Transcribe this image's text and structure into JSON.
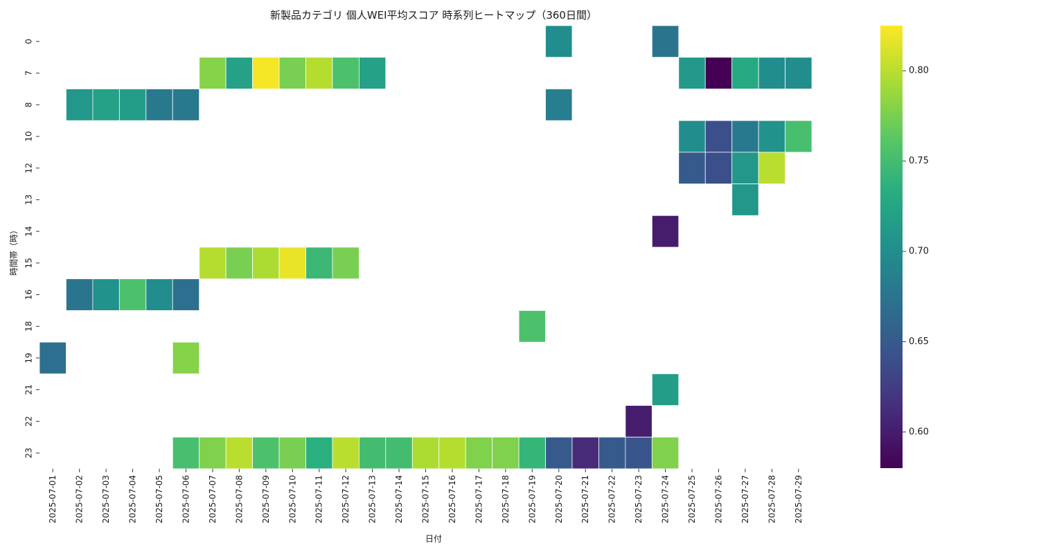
{
  "chart_data": {
    "type": "heatmap",
    "title": "新製品カテゴリ 個人WEI平均スコア 時系列ヒートマップ（360日間）",
    "xlabel": "日付",
    "ylabel": "時間帯（時）",
    "x": [
      "2025-07-01",
      "2025-07-02",
      "2025-07-03",
      "2025-07-04",
      "2025-07-05",
      "2025-07-06",
      "2025-07-07",
      "2025-07-08",
      "2025-07-09",
      "2025-07-10",
      "2025-07-11",
      "2025-07-12",
      "2025-07-13",
      "2025-07-14",
      "2025-07-15",
      "2025-07-16",
      "2025-07-17",
      "2025-07-18",
      "2025-07-19",
      "2025-07-20",
      "2025-07-21",
      "2025-07-22",
      "2025-07-23",
      "2025-07-24",
      "2025-07-25",
      "2025-07-26",
      "2025-07-27",
      "2025-07-28",
      "2025-07-29"
    ],
    "y": [
      "0",
      "7",
      "8",
      "10",
      "12",
      "13",
      "14",
      "15",
      "16",
      "18",
      "19",
      "21",
      "22",
      "23"
    ],
    "colormap": "viridis",
    "vmin": 0.58,
    "vmax": 0.825,
    "colorbar_ticks": [
      "0.60",
      "0.65",
      "0.70",
      "0.75",
      "0.80"
    ],
    "cells": [
      {
        "x": "2025-07-20",
        "y": "0",
        "v": 0.7
      },
      {
        "x": "2025-07-24",
        "y": "0",
        "v": 0.675
      },
      {
        "x": "2025-07-07",
        "y": "7",
        "v": 0.78
      },
      {
        "x": "2025-07-08",
        "y": "7",
        "v": 0.72
      },
      {
        "x": "2025-07-09",
        "y": "7",
        "v": 0.822
      },
      {
        "x": "2025-07-10",
        "y": "7",
        "v": 0.775
      },
      {
        "x": "2025-07-11",
        "y": "7",
        "v": 0.798
      },
      {
        "x": "2025-07-12",
        "y": "7",
        "v": 0.755
      },
      {
        "x": "2025-07-13",
        "y": "7",
        "v": 0.72
      },
      {
        "x": "2025-07-25",
        "y": "7",
        "v": 0.712
      },
      {
        "x": "2025-07-26",
        "y": "7",
        "v": 0.58
      },
      {
        "x": "2025-07-27",
        "y": "7",
        "v": 0.73
      },
      {
        "x": "2025-07-28",
        "y": "7",
        "v": 0.7
      },
      {
        "x": "2025-07-29",
        "y": "7",
        "v": 0.7
      },
      {
        "x": "2025-07-02",
        "y": "8",
        "v": 0.71
      },
      {
        "x": "2025-07-03",
        "y": "8",
        "v": 0.72
      },
      {
        "x": "2025-07-04",
        "y": "8",
        "v": 0.715
      },
      {
        "x": "2025-07-05",
        "y": "8",
        "v": 0.68
      },
      {
        "x": "2025-07-06",
        "y": "8",
        "v": 0.68
      },
      {
        "x": "2025-07-20",
        "y": "8",
        "v": 0.685
      },
      {
        "x": "2025-07-25",
        "y": "10",
        "v": 0.7
      },
      {
        "x": "2025-07-26",
        "y": "10",
        "v": 0.64
      },
      {
        "x": "2025-07-27",
        "y": "10",
        "v": 0.68
      },
      {
        "x": "2025-07-28",
        "y": "10",
        "v": 0.705
      },
      {
        "x": "2025-07-29",
        "y": "10",
        "v": 0.752
      },
      {
        "x": "2025-07-25",
        "y": "12",
        "v": 0.65
      },
      {
        "x": "2025-07-26",
        "y": "12",
        "v": 0.64
      },
      {
        "x": "2025-07-27",
        "y": "12",
        "v": 0.71
      },
      {
        "x": "2025-07-28",
        "y": "12",
        "v": 0.8
      },
      {
        "x": "2025-07-27",
        "y": "13",
        "v": 0.71
      },
      {
        "x": "2025-07-24",
        "y": "14",
        "v": 0.6
      },
      {
        "x": "2025-07-07",
        "y": "15",
        "v": 0.798
      },
      {
        "x": "2025-07-08",
        "y": "15",
        "v": 0.775
      },
      {
        "x": "2025-07-09",
        "y": "15",
        "v": 0.795
      },
      {
        "x": "2025-07-10",
        "y": "15",
        "v": 0.818
      },
      {
        "x": "2025-07-11",
        "y": "15",
        "v": 0.745
      },
      {
        "x": "2025-07-12",
        "y": "15",
        "v": 0.775
      },
      {
        "x": "2025-07-02",
        "y": "16",
        "v": 0.675
      },
      {
        "x": "2025-07-03",
        "y": "16",
        "v": 0.705
      },
      {
        "x": "2025-07-04",
        "y": "16",
        "v": 0.755
      },
      {
        "x": "2025-07-05",
        "y": "16",
        "v": 0.7
      },
      {
        "x": "2025-07-06",
        "y": "16",
        "v": 0.67
      },
      {
        "x": "2025-07-19",
        "y": "18",
        "v": 0.755
      },
      {
        "x": "2025-07-01",
        "y": "19",
        "v": 0.67
      },
      {
        "x": "2025-07-06",
        "y": "19",
        "v": 0.78
      },
      {
        "x": "2025-07-24",
        "y": "21",
        "v": 0.715
      },
      {
        "x": "2025-07-23",
        "y": "22",
        "v": 0.6
      },
      {
        "x": "2025-07-06",
        "y": "23",
        "v": 0.752
      },
      {
        "x": "2025-07-07",
        "y": "23",
        "v": 0.778
      },
      {
        "x": "2025-07-08",
        "y": "23",
        "v": 0.8
      },
      {
        "x": "2025-07-09",
        "y": "23",
        "v": 0.755
      },
      {
        "x": "2025-07-10",
        "y": "23",
        "v": 0.775
      },
      {
        "x": "2025-07-11",
        "y": "23",
        "v": 0.735
      },
      {
        "x": "2025-07-12",
        "y": "23",
        "v": 0.8
      },
      {
        "x": "2025-07-13",
        "y": "23",
        "v": 0.75
      },
      {
        "x": "2025-07-14",
        "y": "23",
        "v": 0.75
      },
      {
        "x": "2025-07-15",
        "y": "23",
        "v": 0.795
      },
      {
        "x": "2025-07-16",
        "y": "23",
        "v": 0.798
      },
      {
        "x": "2025-07-17",
        "y": "23",
        "v": 0.778
      },
      {
        "x": "2025-07-18",
        "y": "23",
        "v": 0.778
      },
      {
        "x": "2025-07-19",
        "y": "23",
        "v": 0.742
      },
      {
        "x": "2025-07-20",
        "y": "23",
        "v": 0.65
      },
      {
        "x": "2025-07-21",
        "y": "23",
        "v": 0.61
      },
      {
        "x": "2025-07-22",
        "y": "23",
        "v": 0.65
      },
      {
        "x": "2025-07-23",
        "y": "23",
        "v": 0.645
      },
      {
        "x": "2025-07-24",
        "y": "23",
        "v": 0.778
      }
    ]
  }
}
